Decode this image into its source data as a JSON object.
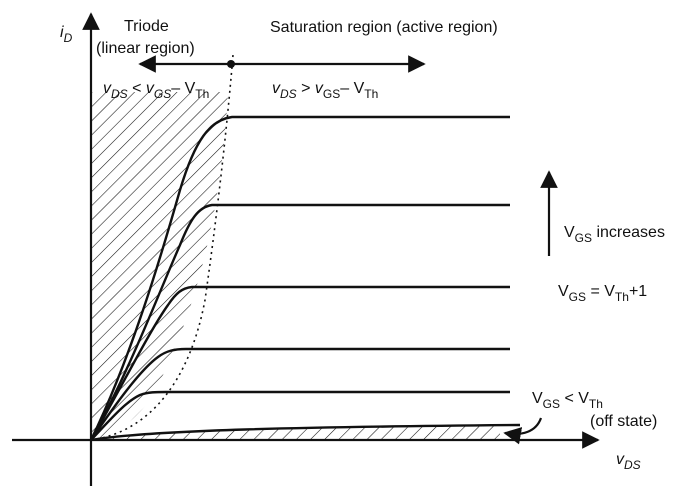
{
  "axes": {
    "y_label": {
      "main": "i",
      "sub": "D"
    },
    "x_label": {
      "main": "v",
      "sub": "DS"
    }
  },
  "regions": {
    "triode": {
      "title": "Triode",
      "subtitle": "(linear region)",
      "condition": {
        "v": "v",
        "ds": "DS",
        "lt": " < ",
        "v2": "v",
        "gs": "GS",
        "dash": "– V",
        "th": "Th"
      }
    },
    "saturation": {
      "title": "Saturation region (active region)",
      "condition": {
        "v": "v",
        "ds": "DS",
        "gt": " > ",
        "v2": "v",
        "gs": "GS",
        "dash": "– V",
        "th": "Th"
      }
    }
  },
  "annotations": {
    "vgs_increases": {
      "v": "V",
      "gs": "GS",
      "rest": " increases"
    },
    "vgs_th_plus_one": {
      "v": "V",
      "gs": "GS",
      "eq": " = V",
      "th": "Th",
      "plus": "+1"
    },
    "off_condition": {
      "v": "V",
      "gs": "GS",
      "lt": " < V",
      "th": "Th"
    },
    "off_state": "(off state)"
  },
  "colors": {
    "ink": "#111111",
    "background": "#ffffff"
  }
}
